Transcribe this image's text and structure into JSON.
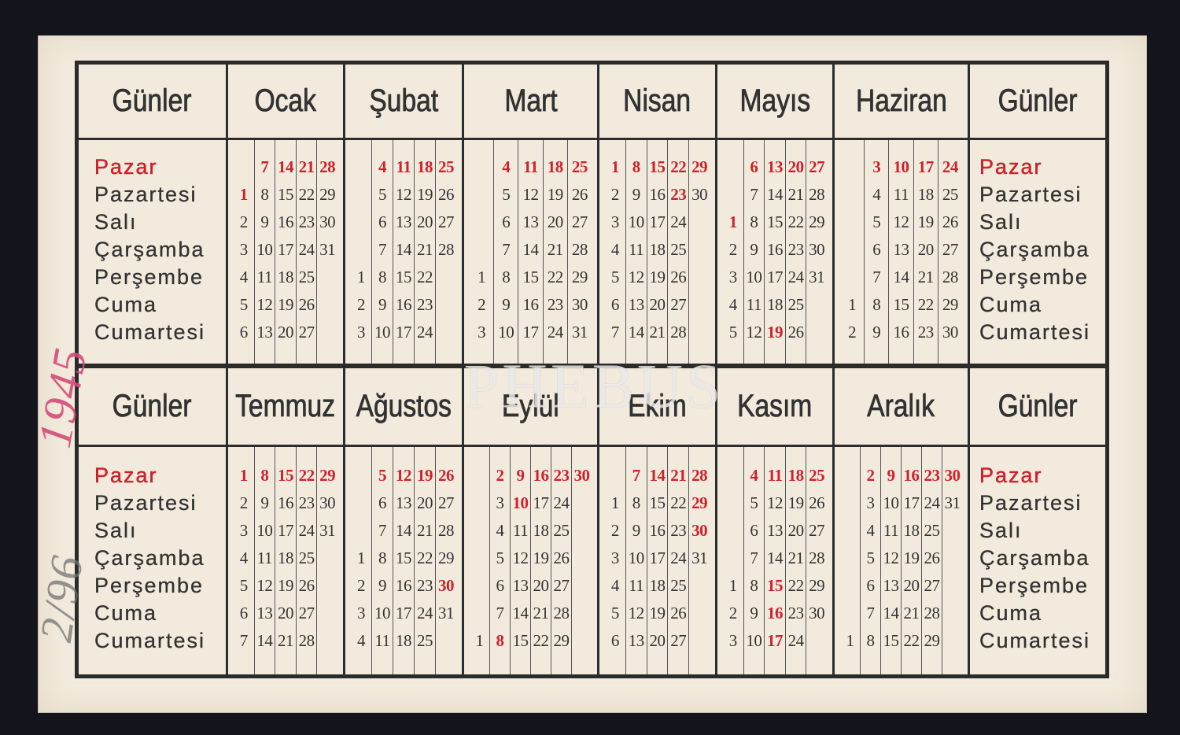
{
  "colors": {
    "background": "#14141d",
    "card": "#f2ebdd",
    "ink": "#2f2f2f",
    "red": "#d0202c",
    "year_note": "#d64a78",
    "ref_note": "#737373"
  },
  "watermark": "PHEBUS",
  "annotations": {
    "year_note": "1945",
    "ref_note": "2/96"
  },
  "day_column_header": "Günler",
  "days": [
    "Pazar",
    "Pazartesi",
    "Salı",
    "Çarşamba",
    "Perşembe",
    "Cuma",
    "Cumartesi"
  ],
  "halves": [
    {
      "months": [
        {
          "name": "Ocak",
          "weeks": [
            [
              null,
              1,
              2,
              3,
              4,
              5,
              6
            ],
            [
              7,
              8,
              9,
              10,
              11,
              12,
              13
            ],
            [
              14,
              15,
              16,
              17,
              18,
              19,
              20
            ],
            [
              21,
              22,
              23,
              24,
              25,
              26,
              27
            ],
            [
              28,
              29,
              30,
              31,
              null,
              null,
              null
            ]
          ],
          "red": [
            1,
            7,
            14,
            21,
            28
          ]
        },
        {
          "name": "Şubat",
          "weeks": [
            [
              null,
              null,
              null,
              null,
              1,
              2,
              3
            ],
            [
              4,
              5,
              6,
              7,
              8,
              9,
              10
            ],
            [
              11,
              12,
              13,
              14,
              15,
              16,
              17
            ],
            [
              18,
              19,
              20,
              21,
              22,
              23,
              24
            ],
            [
              25,
              26,
              27,
              28,
              null,
              null,
              null
            ]
          ],
          "red": [
            4,
            11,
            18,
            25
          ]
        },
        {
          "name": "Mart",
          "weeks": [
            [
              null,
              null,
              null,
              null,
              1,
              2,
              3
            ],
            [
              4,
              5,
              6,
              7,
              8,
              9,
              10
            ],
            [
              11,
              12,
              13,
              14,
              15,
              16,
              17
            ],
            [
              18,
              19,
              20,
              21,
              22,
              23,
              24
            ],
            [
              25,
              26,
              27,
              28,
              29,
              30,
              31
            ]
          ],
          "red": [
            4,
            11,
            18,
            25
          ]
        },
        {
          "name": "Nisan",
          "weeks": [
            [
              1,
              2,
              3,
              4,
              5,
              6,
              7
            ],
            [
              8,
              9,
              10,
              11,
              12,
              13,
              14
            ],
            [
              15,
              16,
              17,
              18,
              19,
              20,
              21
            ],
            [
              22,
              23,
              24,
              25,
              26,
              27,
              28
            ],
            [
              29,
              30,
              null,
              null,
              null,
              null,
              null
            ]
          ],
          "red": [
            1,
            8,
            15,
            22,
            23,
            29
          ]
        },
        {
          "name": "Mayıs",
          "weeks": [
            [
              null,
              null,
              1,
              2,
              3,
              4,
              5
            ],
            [
              6,
              7,
              8,
              9,
              10,
              11,
              12
            ],
            [
              13,
              14,
              15,
              16,
              17,
              18,
              19
            ],
            [
              20,
              21,
              22,
              23,
              24,
              25,
              26
            ],
            [
              27,
              28,
              29,
              30,
              31,
              null,
              null
            ]
          ],
          "red": [
            1,
            6,
            13,
            19,
            20,
            27
          ]
        },
        {
          "name": "Haziran",
          "weeks": [
            [
              null,
              null,
              null,
              null,
              null,
              1,
              2
            ],
            [
              3,
              4,
              5,
              6,
              7,
              8,
              9
            ],
            [
              10,
              11,
              12,
              13,
              14,
              15,
              16
            ],
            [
              17,
              18,
              19,
              20,
              21,
              22,
              23
            ],
            [
              24,
              25,
              26,
              27,
              28,
              29,
              30
            ]
          ],
          "red": [
            3,
            10,
            17,
            24
          ]
        }
      ]
    },
    {
      "months": [
        {
          "name": "Temmuz",
          "weeks": [
            [
              1,
              2,
              3,
              4,
              5,
              6,
              7
            ],
            [
              8,
              9,
              10,
              11,
              12,
              13,
              14
            ],
            [
              15,
              16,
              17,
              18,
              19,
              20,
              21
            ],
            [
              22,
              23,
              24,
              25,
              26,
              27,
              28
            ],
            [
              29,
              30,
              31,
              null,
              null,
              null,
              null
            ]
          ],
          "red": [
            1,
            8,
            15,
            22,
            29
          ]
        },
        {
          "name": "Ağustos",
          "weeks": [
            [
              null,
              null,
              null,
              1,
              2,
              3,
              4
            ],
            [
              5,
              6,
              7,
              8,
              9,
              10,
              11
            ],
            [
              12,
              13,
              14,
              15,
              16,
              17,
              18
            ],
            [
              19,
              20,
              21,
              22,
              23,
              24,
              25
            ],
            [
              26,
              27,
              28,
              29,
              30,
              31,
              null
            ]
          ],
          "red": [
            5,
            12,
            19,
            26,
            30
          ]
        },
        {
          "name": "Eylül",
          "weeks": [
            [
              null,
              null,
              null,
              null,
              null,
              null,
              1
            ],
            [
              2,
              3,
              4,
              5,
              6,
              7,
              8
            ],
            [
              9,
              10,
              11,
              12,
              13,
              14,
              15
            ],
            [
              16,
              17,
              18,
              19,
              20,
              21,
              22
            ],
            [
              23,
              24,
              25,
              26,
              27,
              28,
              29
            ],
            [
              30,
              null,
              null,
              null,
              null,
              null,
              null
            ]
          ],
          "red": [
            2,
            8,
            9,
            10,
            16,
            23,
            30
          ]
        },
        {
          "name": "Ekim",
          "weeks": [
            [
              null,
              1,
              2,
              3,
              4,
              5,
              6
            ],
            [
              7,
              8,
              9,
              10,
              11,
              12,
              13
            ],
            [
              14,
              15,
              16,
              17,
              18,
              19,
              20
            ],
            [
              21,
              22,
              23,
              24,
              25,
              26,
              27
            ],
            [
              28,
              29,
              30,
              31,
              null,
              null,
              null
            ]
          ],
          "red": [
            7,
            14,
            21,
            28,
            29,
            30
          ]
        },
        {
          "name": "Kasım",
          "weeks": [
            [
              null,
              null,
              null,
              null,
              1,
              2,
              3
            ],
            [
              4,
              5,
              6,
              7,
              8,
              9,
              10
            ],
            [
              11,
              12,
              13,
              14,
              15,
              16,
              17
            ],
            [
              18,
              19,
              20,
              21,
              22,
              23,
              24
            ],
            [
              25,
              26,
              27,
              28,
              29,
              30,
              null
            ]
          ],
          "red": [
            4,
            11,
            15,
            16,
            17,
            18,
            25
          ]
        },
        {
          "name": "Aralık",
          "weeks": [
            [
              null,
              null,
              null,
              null,
              null,
              null,
              1
            ],
            [
              2,
              3,
              4,
              5,
              6,
              7,
              8
            ],
            [
              9,
              10,
              11,
              12,
              13,
              14,
              15
            ],
            [
              16,
              17,
              18,
              19,
              20,
              21,
              22
            ],
            [
              23,
              24,
              25,
              26,
              27,
              28,
              29
            ],
            [
              30,
              31,
              null,
              null,
              null,
              null,
              null
            ]
          ],
          "red": [
            2,
            9,
            16,
            23,
            30
          ]
        }
      ]
    }
  ]
}
